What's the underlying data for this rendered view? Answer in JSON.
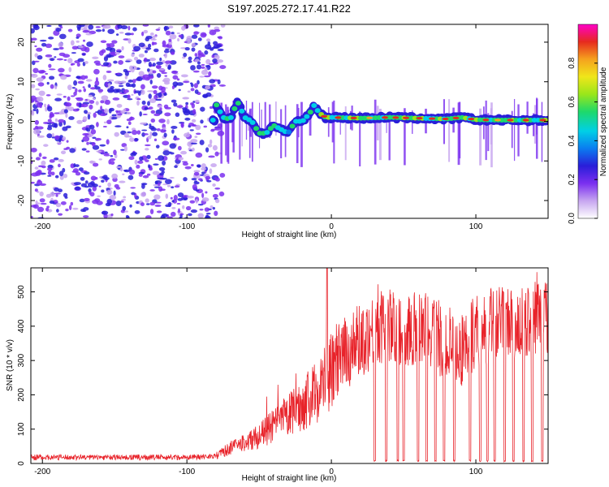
{
  "title": "S197.2025.272.17.41.R22",
  "colors": {
    "line": "#e8232a",
    "axis": "#000000"
  },
  "chart_data": [
    {
      "type": "heatmap",
      "xlabel": "Height of straight line (km)",
      "ylabel": "Frequency (Hz)",
      "xlim": [
        -208,
        150
      ],
      "ylim": [
        -24.5,
        24.5
      ],
      "xticks": [
        -200,
        -100,
        0,
        100
      ],
      "yticks": [
        -20,
        -10,
        0,
        10,
        20
      ],
      "colorbar": {
        "label": "Normalized spectral amplitude",
        "range": [
          0,
          1
        ],
        "ticks": [
          0.0,
          0.2,
          0.4,
          0.6,
          0.8
        ],
        "colormap": [
          "#ffffff",
          "#c7a6f0",
          "#7b2ff0",
          "#2a1ed9",
          "#0a7cf0",
          "#00d0e6",
          "#1ed96a",
          "#9ae61a",
          "#f0e61a",
          "#f5a21e",
          "#e62a1e",
          "#ff00c8"
        ]
      },
      "ridge": {
        "description": "dominant frequency track",
        "x": [
          -80,
          -75,
          -70,
          -65,
          -60,
          -55,
          -50,
          -45,
          -40,
          -35,
          -30,
          -25,
          -20,
          -15,
          -12,
          -8,
          -4,
          0,
          20,
          40,
          60,
          80,
          90,
          100,
          120,
          150
        ],
        "freq": [
          4.5,
          1,
          0.5,
          5,
          1,
          0,
          -3,
          -3,
          -1,
          -2,
          -3,
          0,
          0,
          2,
          4,
          2,
          1,
          1,
          0.8,
          1,
          0.8,
          0.6,
          1,
          0.4,
          0.3,
          0.3
        ]
      }
    },
    {
      "type": "line",
      "xlabel": "Height of straight line (km)",
      "ylabel": "SNR (10 * v/v)",
      "xlim": [
        -208,
        150
      ],
      "ylim": [
        0,
        570
      ],
      "xticks": [
        -200,
        -100,
        0,
        100
      ],
      "yticks": [
        0,
        100,
        200,
        300,
        400,
        500
      ],
      "series": [
        {
          "name": "SNR",
          "trend_x": [
            -208,
            -150,
            -100,
            -80,
            -70,
            -60,
            -50,
            -40,
            -30,
            -20,
            -10,
            0,
            10,
            20,
            30,
            40,
            50,
            60,
            70,
            80,
            90,
            100,
            110,
            120,
            130,
            140,
            150
          ],
          "trend_y": [
            18,
            18,
            18,
            22,
            45,
            60,
            80,
            110,
            140,
            170,
            210,
            270,
            320,
            360,
            390,
            400,
            390,
            400,
            380,
            350,
            330,
            390,
            400,
            410,
            400,
            420,
            430
          ],
          "dropouts_x": [
            30,
            38,
            46,
            50,
            60,
            66,
            72,
            78,
            85,
            96,
            103,
            108,
            113,
            120,
            126,
            133,
            139,
            146
          ],
          "peak": {
            "x": -3,
            "y": 570
          }
        }
      ]
    }
  ]
}
